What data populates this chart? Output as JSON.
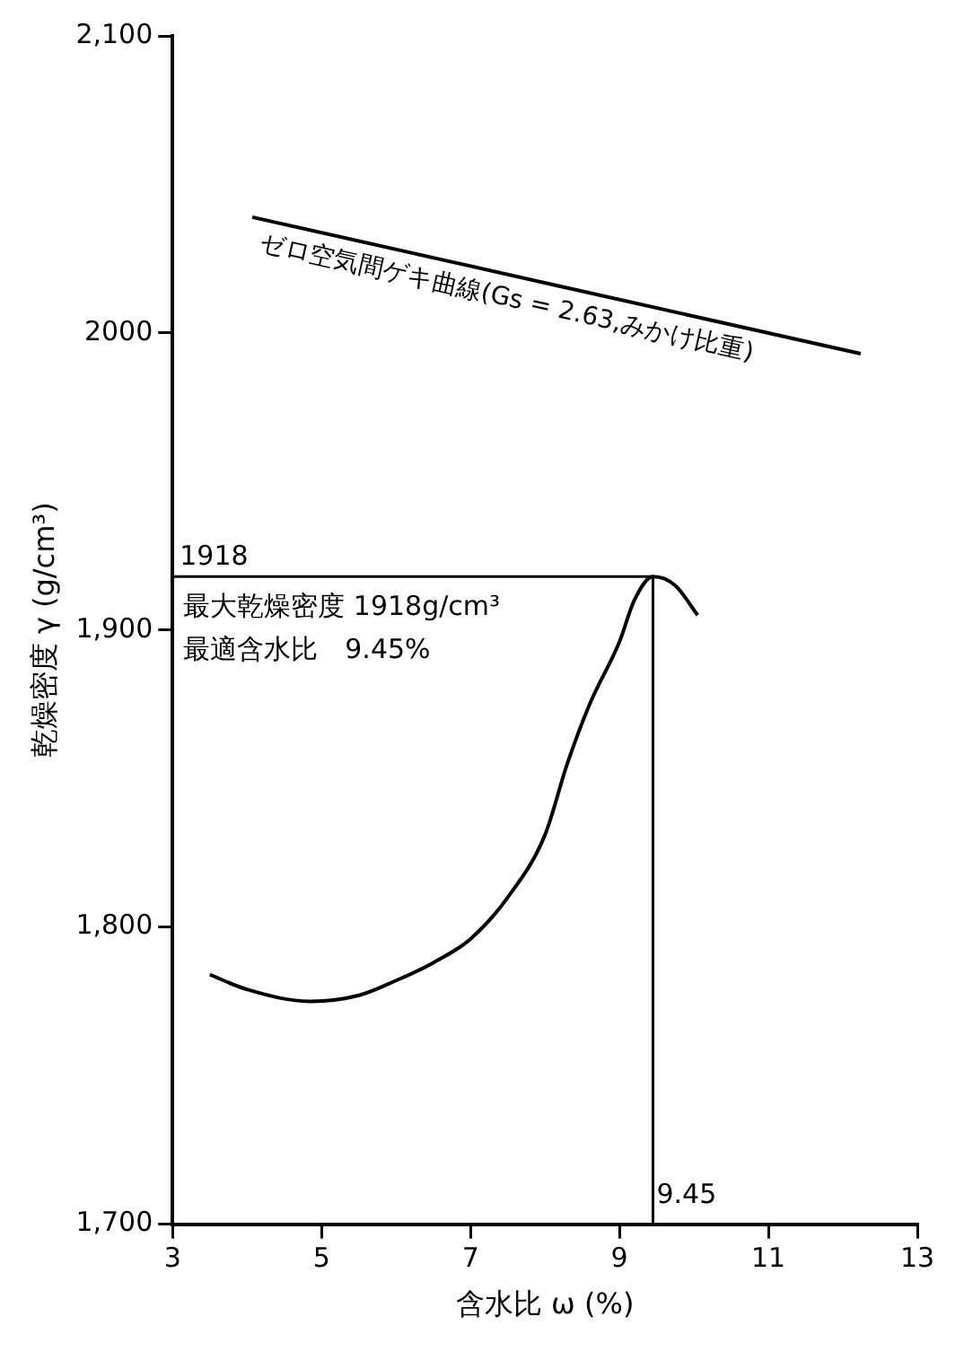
{
  "chart_data": {
    "type": "line",
    "xlabel": "含水比 ω (%)",
    "ylabel": "乾燥密度 γ (g/cm³)",
    "xlim": [
      3,
      13
    ],
    "xticks": [
      3,
      5,
      7,
      9,
      11,
      13
    ],
    "ylim": [
      1700,
      2100
    ],
    "yticks": [
      {
        "value": 1700,
        "label": "1,700"
      },
      {
        "value": 1800,
        "label": "1,800"
      },
      {
        "value": 1900,
        "label": "1,900"
      },
      {
        "value": 2000,
        "label": "2000"
      },
      {
        "value": 2100,
        "label": "2,100"
      }
    ],
    "series": [
      {
        "color": "#000000",
        "x": [
          3.5,
          4,
          4.85,
          5.5,
          6,
          6.5,
          7,
          7.5,
          8,
          8.3,
          8.6,
          9,
          9.2,
          9.45,
          9.75,
          10.05
        ],
        "values": [
          1784,
          1779,
          1775,
          1777,
          1782,
          1788,
          1796,
          1810,
          1831,
          1855,
          1875,
          1896,
          1910,
          1918,
          1915,
          1905
        ]
      },
      {
        "name": "ゼロ空気間ゲキ曲線(Gs = 2.63,みかけ比重)",
        "color": "#000000",
        "x": [
          4.07,
          12.24
        ],
        "values": [
          2039,
          1993
        ]
      }
    ],
    "ref_lines": [
      {
        "axis": "y",
        "value": 1918,
        "label": "1918"
      },
      {
        "axis": "x",
        "value": 9.45,
        "label": "9.45"
      }
    ],
    "annotations": [
      "最大乾燥密度 1918g/cm³",
      "最適含水比　9.45%"
    ],
    "grid": false,
    "legend": false,
    "marker": "none",
    "line_style": "solid"
  }
}
